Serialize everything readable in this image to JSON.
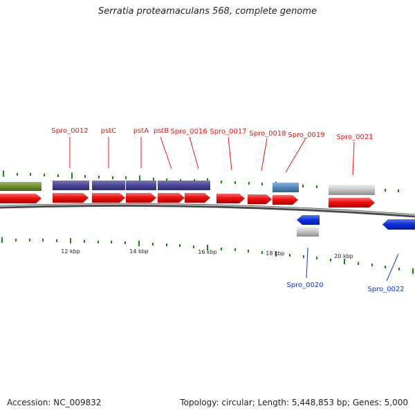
{
  "title": "Serratia proteamaculans 568, complete genome",
  "footer": {
    "accession": "Accession: NC_009832",
    "summary": "Topology: circular; Length: 5,448,853 bp; Genes: 5,000"
  },
  "colors": {
    "forward_gene": "#ee1111",
    "reverse_gene": "#1133dd",
    "feature_dark": "#4b4796",
    "feature_light": "#5588bb",
    "feature_gray": "#c4c4c4",
    "feature_green": "#6e8c32",
    "tick": "#118811",
    "backbone": "#888888"
  },
  "scale_labels": [
    "12 kbp",
    "14 kbp",
    "16 kbp",
    "18 kbp",
    "20 kbp"
  ],
  "forward_labels": [
    "Spro_0012",
    "pstC",
    "pstA",
    "pstB",
    "Spro_0016",
    "Spro_0017",
    "Spro_0018",
    "Spro_0019",
    "Spro_0021"
  ],
  "reverse_labels": [
    "Spro_0020",
    "Spro_0022"
  ]
}
